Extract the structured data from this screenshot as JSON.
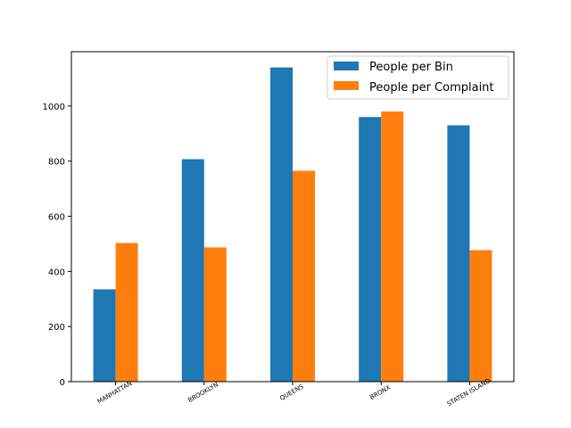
{
  "chart_data": {
    "type": "bar",
    "categories": [
      "MANHATTAN",
      "BROOKLYN",
      "QUEENS",
      "BRONX",
      "STATEN ISLAND"
    ],
    "series": [
      {
        "name": "People per Bin",
        "values": [
          335,
          807,
          1140,
          960,
          930
        ],
        "color": "#1f77b4"
      },
      {
        "name": "People per Complaint",
        "values": [
          503,
          487,
          765,
          980,
          477
        ],
        "color": "#ff7f0e"
      }
    ],
    "yticks": [
      0,
      200,
      400,
      600,
      800,
      1000
    ],
    "ylim": [
      0,
      1197
    ],
    "grid": false,
    "legend_position": "top-right"
  }
}
